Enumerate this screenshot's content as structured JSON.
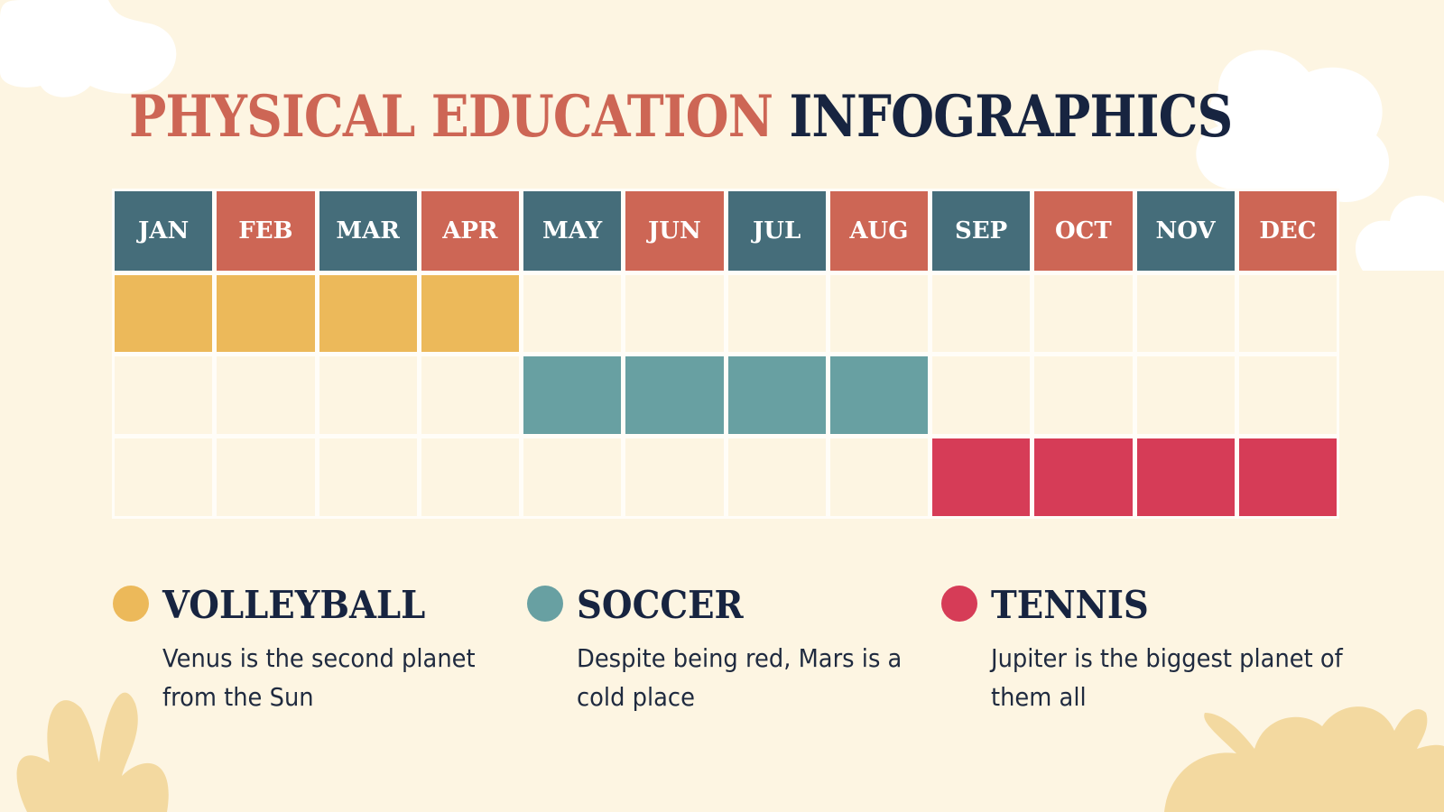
{
  "title": {
    "part1": "PHYSICAL EDUCATION",
    "part2": "INFOGRAPHICS"
  },
  "months": [
    "JAN",
    "FEB",
    "MAR",
    "APR",
    "MAY",
    "JUN",
    "JUL",
    "AUG",
    "SEP",
    "OCT",
    "NOV",
    "DEC"
  ],
  "colors": {
    "background": "#fdf5e2",
    "header_dark": "#456d7a",
    "header_coral": "#cd6655",
    "title_accent": "#cd6655",
    "title_dark": "#172440"
  },
  "activities": [
    {
      "name": "VOLLEYBALL",
      "description": "Venus is the second planet from the Sun",
      "color": "#ecb95a",
      "months": [
        "JAN",
        "FEB",
        "MAR",
        "APR"
      ]
    },
    {
      "name": "SOCCER",
      "description": "Despite being red, Mars is a cold place",
      "color": "#68a0a2",
      "months": [
        "MAY",
        "JUN",
        "JUL",
        "AUG"
      ]
    },
    {
      "name": "TENNIS",
      "description": "Jupiter is the biggest planet of them all",
      "color": "#d63c57",
      "months": [
        "SEP",
        "OCT",
        "NOV",
        "DEC"
      ]
    }
  ]
}
